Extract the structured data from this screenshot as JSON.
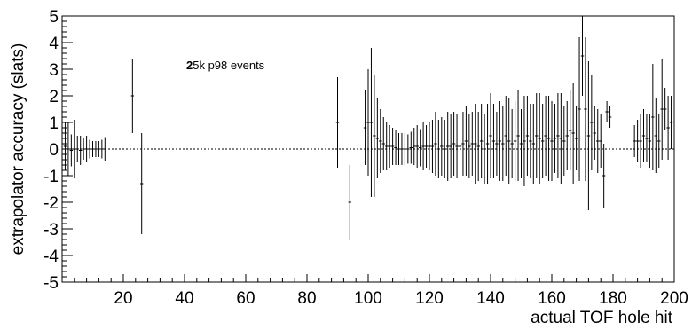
{
  "chart_data": {
    "type": "scatter",
    "title": "",
    "xlabel": "actual TOF hole hit",
    "ylabel": "extrapolator accuracy (slats)",
    "xlim": [
      0,
      200
    ],
    "ylim": [
      -5,
      5
    ],
    "x_ticks": [
      20,
      40,
      60,
      80,
      100,
      120,
      140,
      160,
      180,
      200
    ],
    "y_ticks": [
      -5,
      -4,
      -3,
      -2,
      -1,
      0,
      1,
      2,
      3,
      4,
      5
    ],
    "grid": false,
    "annotation": {
      "lead": "2",
      "rest": "5k p98 events"
    },
    "series": [
      {
        "points": [
          {
            "x": 1,
            "y": 0.1,
            "err": 0.9
          },
          {
            "x": 2,
            "y": 0.0,
            "err": 1.0
          },
          {
            "x": 3,
            "y": -0.05,
            "err": 0.6
          },
          {
            "x": 4,
            "y": 0.0,
            "err": 1.1
          },
          {
            "x": 5,
            "y": 0.0,
            "err": 0.5
          },
          {
            "x": 6,
            "y": -0.05,
            "err": 0.55
          },
          {
            "x": 7,
            "y": 0.0,
            "err": 0.4
          },
          {
            "x": 8,
            "y": 0.0,
            "err": 0.5
          },
          {
            "x": 9,
            "y": 0.0,
            "err": 0.35
          },
          {
            "x": 10,
            "y": 0.0,
            "err": 0.3
          },
          {
            "x": 11,
            "y": 0.0,
            "err": 0.3
          },
          {
            "x": 12,
            "y": 0.0,
            "err": 0.3
          },
          {
            "x": 13,
            "y": 0.0,
            "err": 0.35
          },
          {
            "x": 14,
            "y": 0.0,
            "err": 0.45
          },
          {
            "x": 23,
            "y": 2.0,
            "err": 1.4
          },
          {
            "x": 26,
            "y": -1.3,
            "err": 1.9
          },
          {
            "x": 90,
            "y": 1.0,
            "err": 1.7
          },
          {
            "x": 94,
            "y": -2.0,
            "err": 1.4
          },
          {
            "x": 99,
            "y": 0.8,
            "err": 1.4
          },
          {
            "x": 100,
            "y": 1.0,
            "err": 2.0
          },
          {
            "x": 101,
            "y": 1.0,
            "err": 2.8
          },
          {
            "x": 102,
            "y": 0.5,
            "err": 2.3
          },
          {
            "x": 103,
            "y": 0.4,
            "err": 1.5
          },
          {
            "x": 104,
            "y": 0.3,
            "err": 1.2
          },
          {
            "x": 105,
            "y": 0.2,
            "err": 1.0
          },
          {
            "x": 106,
            "y": 0.1,
            "err": 0.9
          },
          {
            "x": 107,
            "y": 0.1,
            "err": 0.8
          },
          {
            "x": 108,
            "y": 0.1,
            "err": 0.7
          },
          {
            "x": 109,
            "y": 0.05,
            "err": 0.65
          },
          {
            "x": 110,
            "y": 0.0,
            "err": 0.6
          },
          {
            "x": 111,
            "y": 0.0,
            "err": 0.6
          },
          {
            "x": 112,
            "y": 0.0,
            "err": 0.6
          },
          {
            "x": 113,
            "y": 0.0,
            "err": 0.55
          },
          {
            "x": 114,
            "y": 0.05,
            "err": 0.6
          },
          {
            "x": 115,
            "y": 0.1,
            "err": 0.7
          },
          {
            "x": 116,
            "y": 0.1,
            "err": 0.8
          },
          {
            "x": 117,
            "y": 0.05,
            "err": 0.7
          },
          {
            "x": 118,
            "y": 0.1,
            "err": 0.9
          },
          {
            "x": 119,
            "y": 0.1,
            "err": 0.8
          },
          {
            "x": 120,
            "y": 0.1,
            "err": 0.9
          },
          {
            "x": 121,
            "y": 0.1,
            "err": 1.0
          },
          {
            "x": 122,
            "y": 0.2,
            "err": 1.2
          },
          {
            "x": 123,
            "y": 0.0,
            "err": 1.1
          },
          {
            "x": 124,
            "y": 0.1,
            "err": 1.1
          },
          {
            "x": 125,
            "y": 0.0,
            "err": 1.1
          },
          {
            "x": 126,
            "y": 0.1,
            "err": 1.3
          },
          {
            "x": 127,
            "y": 0.1,
            "err": 1.2
          },
          {
            "x": 128,
            "y": 0.2,
            "err": 1.2
          },
          {
            "x": 129,
            "y": 0.1,
            "err": 1.2
          },
          {
            "x": 130,
            "y": 0.1,
            "err": 1.3
          },
          {
            "x": 131,
            "y": 0.2,
            "err": 1.2
          },
          {
            "x": 132,
            "y": 0.3,
            "err": 1.3
          },
          {
            "x": 133,
            "y": 0.1,
            "err": 1.2
          },
          {
            "x": 134,
            "y": 0.2,
            "err": 1.2
          },
          {
            "x": 135,
            "y": 0.2,
            "err": 1.5
          },
          {
            "x": 136,
            "y": 0.1,
            "err": 1.3
          },
          {
            "x": 137,
            "y": 0.3,
            "err": 1.4
          },
          {
            "x": 138,
            "y": 0.0,
            "err": 1.3
          },
          {
            "x": 139,
            "y": 0.2,
            "err": 1.5
          },
          {
            "x": 140,
            "y": 0.5,
            "err": 1.6
          },
          {
            "x": 141,
            "y": 0.3,
            "err": 1.4
          },
          {
            "x": 142,
            "y": 0.2,
            "err": 1.2
          },
          {
            "x": 143,
            "y": 0.3,
            "err": 1.5
          },
          {
            "x": 144,
            "y": 0.2,
            "err": 1.4
          },
          {
            "x": 145,
            "y": 0.5,
            "err": 1.5
          },
          {
            "x": 146,
            "y": 0.3,
            "err": 1.6
          },
          {
            "x": 147,
            "y": 0.2,
            "err": 1.3
          },
          {
            "x": 148,
            "y": 0.3,
            "err": 1.5
          },
          {
            "x": 149,
            "y": 0.5,
            "err": 1.7
          },
          {
            "x": 150,
            "y": 0.2,
            "err": 1.3
          },
          {
            "x": 151,
            "y": 0.3,
            "err": 1.7
          },
          {
            "x": 152,
            "y": 0.5,
            "err": 1.5
          },
          {
            "x": 153,
            "y": 0.3,
            "err": 1.4
          },
          {
            "x": 154,
            "y": 0.2,
            "err": 1.5
          },
          {
            "x": 155,
            "y": 0.5,
            "err": 1.6
          },
          {
            "x": 156,
            "y": 0.4,
            "err": 1.7
          },
          {
            "x": 157,
            "y": 0.3,
            "err": 1.4
          },
          {
            "x": 158,
            "y": 0.5,
            "err": 1.5
          },
          {
            "x": 159,
            "y": 0.4,
            "err": 1.6
          },
          {
            "x": 160,
            "y": 0.3,
            "err": 1.5
          },
          {
            "x": 161,
            "y": 0.4,
            "err": 1.3
          },
          {
            "x": 162,
            "y": 0.5,
            "err": 1.6
          },
          {
            "x": 163,
            "y": 0.4,
            "err": 1.7
          },
          {
            "x": 164,
            "y": 0.3,
            "err": 1.3
          },
          {
            "x": 165,
            "y": 0.5,
            "err": 1.3
          },
          {
            "x": 166,
            "y": 0.7,
            "err": 1.5
          },
          {
            "x": 167,
            "y": 0.6,
            "err": 1.9
          },
          {
            "x": 168,
            "y": 0.4,
            "err": 1.2
          },
          {
            "x": 169,
            "y": 1.5,
            "err": 2.7
          },
          {
            "x": 170,
            "y": 3.5,
            "err": 1.5
          },
          {
            "x": 171,
            "y": 1.5,
            "err": 2.7
          },
          {
            "x": 172,
            "y": 0.5,
            "err": 2.8
          },
          {
            "x": 173,
            "y": 1.0,
            "err": 1.8
          },
          {
            "x": 174,
            "y": 0.6,
            "err": 1.0
          },
          {
            "x": 175,
            "y": 0.3,
            "err": 1.2
          },
          {
            "x": 176,
            "y": 0.3,
            "err": 1.0
          },
          {
            "x": 177,
            "y": -1.0,
            "err": 1.2
          },
          {
            "x": 178,
            "y": 1.4,
            "err": 0.4
          },
          {
            "x": 179,
            "y": 1.2,
            "err": 0.4
          },
          {
            "x": 187,
            "y": 0.3,
            "err": 0.6
          },
          {
            "x": 188,
            "y": 0.3,
            "err": 0.8
          },
          {
            "x": 189,
            "y": 0.3,
            "err": 1.0
          },
          {
            "x": 190,
            "y": 0.5,
            "err": 1.0
          },
          {
            "x": 191,
            "y": 0.4,
            "err": 0.9
          },
          {
            "x": 192,
            "y": 0.3,
            "err": 1.0
          },
          {
            "x": 193,
            "y": 1.2,
            "err": 2.0
          },
          {
            "x": 194,
            "y": 0.5,
            "err": 1.4
          },
          {
            "x": 195,
            "y": 0.3,
            "err": 1.0
          },
          {
            "x": 196,
            "y": 1.5,
            "err": 1.9
          },
          {
            "x": 197,
            "y": 1.5,
            "err": 0.8
          },
          {
            "x": 198,
            "y": 0.8,
            "err": 1.2
          },
          {
            "x": 199,
            "y": 1.0,
            "err": 1.0
          }
        ]
      }
    ]
  }
}
